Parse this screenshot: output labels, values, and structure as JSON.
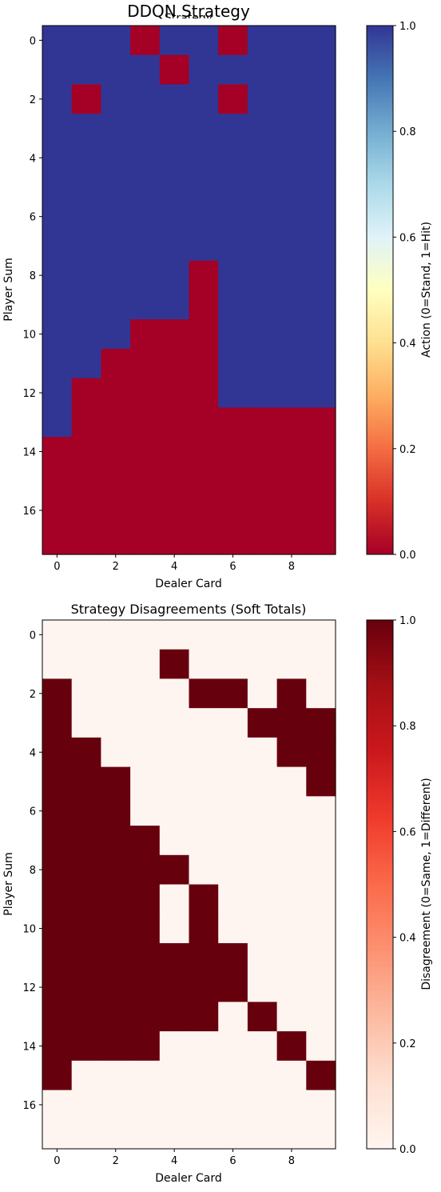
{
  "chart_data": [
    {
      "type": "heatmap",
      "title": "DDQN Strategy",
      "subtitle_fragment": "Strategy",
      "xlabel": "Dealer Card",
      "ylabel": "Player Sum",
      "x_ticks": [
        0,
        2,
        4,
        6,
        8
      ],
      "y_ticks": [
        0,
        2,
        4,
        6,
        8,
        10,
        12,
        14,
        16
      ],
      "n_cols": 10,
      "n_rows": 18,
      "colormap": "RdYlBu",
      "color_low": "#a50026",
      "color_high": "#313695",
      "colorbar": {
        "label": "Action (0=Stand, 1=Hit)",
        "ticks": [
          "0.0",
          "0.2",
          "0.4",
          "0.6",
          "0.8",
          "1.0"
        ],
        "range": [
          0,
          1
        ]
      },
      "values": [
        [
          1,
          1,
          1,
          0,
          1,
          1,
          0,
          1,
          1,
          1
        ],
        [
          1,
          1,
          1,
          1,
          0,
          1,
          1,
          1,
          1,
          1
        ],
        [
          1,
          0,
          1,
          1,
          1,
          1,
          0,
          1,
          1,
          1
        ],
        [
          1,
          1,
          1,
          1,
          1,
          1,
          1,
          1,
          1,
          1
        ],
        [
          1,
          1,
          1,
          1,
          1,
          1,
          1,
          1,
          1,
          1
        ],
        [
          1,
          1,
          1,
          1,
          1,
          1,
          1,
          1,
          1,
          1
        ],
        [
          1,
          1,
          1,
          1,
          1,
          1,
          1,
          1,
          1,
          1
        ],
        [
          1,
          1,
          1,
          1,
          1,
          1,
          1,
          1,
          1,
          1
        ],
        [
          1,
          1,
          1,
          1,
          1,
          0,
          1,
          1,
          1,
          1
        ],
        [
          1,
          1,
          1,
          1,
          1,
          0,
          1,
          1,
          1,
          1
        ],
        [
          1,
          1,
          1,
          0,
          0,
          0,
          1,
          1,
          1,
          1
        ],
        [
          1,
          1,
          0,
          0,
          0,
          0,
          1,
          1,
          1,
          1
        ],
        [
          1,
          0,
          0,
          0,
          0,
          0,
          1,
          1,
          1,
          1
        ],
        [
          1,
          0,
          0,
          0,
          0,
          0,
          0,
          0,
          0,
          0
        ],
        [
          0,
          0,
          0,
          0,
          0,
          0,
          0,
          0,
          0,
          0
        ],
        [
          0,
          0,
          0,
          0,
          0,
          0,
          0,
          0,
          0,
          0
        ],
        [
          0,
          0,
          0,
          0,
          0,
          0,
          0,
          0,
          0,
          0
        ],
        [
          0,
          0,
          0,
          0,
          0,
          0,
          0,
          0,
          0,
          0
        ]
      ]
    },
    {
      "type": "heatmap",
      "title": "Strategy Disagreements (Soft Totals)",
      "xlabel": "Dealer Card",
      "ylabel": "Player Sum",
      "x_ticks": [
        0,
        2,
        4,
        6,
        8
      ],
      "y_ticks": [
        0,
        2,
        4,
        6,
        8,
        10,
        12,
        14,
        16
      ],
      "n_cols": 10,
      "n_rows": 18,
      "colormap": "Reds",
      "color_low": "#fff5f0",
      "color_high": "#67000d",
      "colorbar": {
        "label": "Disagreement (0=Same, 1=Different)",
        "ticks": [
          "0.0",
          "0.2",
          "0.4",
          "0.6",
          "0.8",
          "1.0"
        ],
        "range": [
          0,
          1
        ]
      },
      "values": [
        [
          0,
          0,
          0,
          0,
          0,
          0,
          0,
          0,
          0,
          0
        ],
        [
          0,
          0,
          0,
          0,
          1,
          0,
          0,
          0,
          0,
          0
        ],
        [
          1,
          0,
          0,
          0,
          0,
          1,
          1,
          0,
          1,
          0
        ],
        [
          1,
          0,
          0,
          0,
          0,
          0,
          0,
          1,
          1,
          1
        ],
        [
          1,
          1,
          0,
          0,
          0,
          0,
          0,
          0,
          1,
          1
        ],
        [
          1,
          1,
          1,
          0,
          0,
          0,
          0,
          0,
          0,
          1
        ],
        [
          1,
          1,
          1,
          0,
          0,
          0,
          0,
          0,
          0,
          0
        ],
        [
          1,
          1,
          1,
          1,
          0,
          0,
          0,
          0,
          0,
          0
        ],
        [
          1,
          1,
          1,
          1,
          1,
          0,
          0,
          0,
          0,
          0
        ],
        [
          1,
          1,
          1,
          1,
          0,
          1,
          0,
          0,
          0,
          0
        ],
        [
          1,
          1,
          1,
          1,
          0,
          1,
          0,
          0,
          0,
          0
        ],
        [
          1,
          1,
          1,
          1,
          1,
          1,
          1,
          0,
          0,
          0
        ],
        [
          1,
          1,
          1,
          1,
          1,
          1,
          1,
          0,
          0,
          0
        ],
        [
          1,
          1,
          1,
          1,
          1,
          1,
          0,
          1,
          0,
          0
        ],
        [
          1,
          1,
          1,
          1,
          0,
          0,
          0,
          0,
          1,
          0
        ],
        [
          1,
          0,
          0,
          0,
          0,
          0,
          0,
          0,
          0,
          1
        ],
        [
          0,
          0,
          0,
          0,
          0,
          0,
          0,
          0,
          0,
          0
        ],
        [
          0,
          0,
          0,
          0,
          0,
          0,
          0,
          0,
          0,
          0
        ]
      ]
    }
  ]
}
